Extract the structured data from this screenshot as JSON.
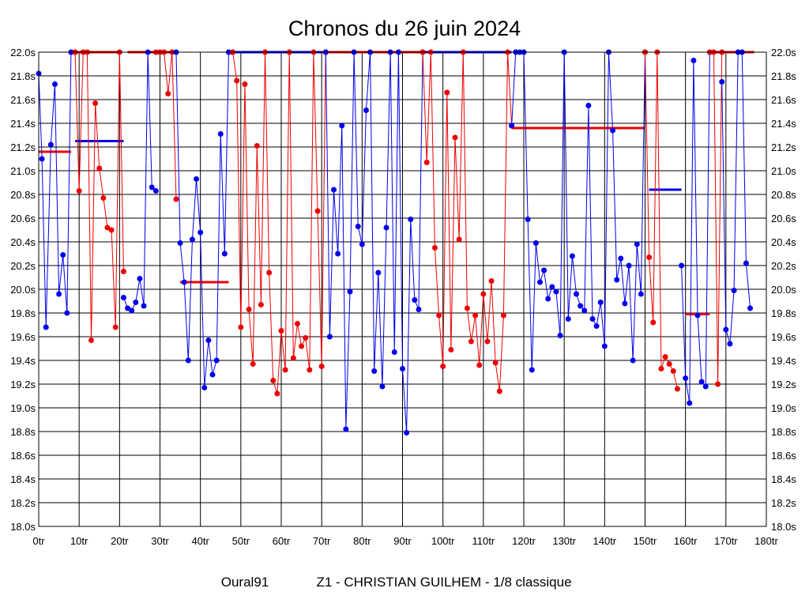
{
  "chart_data": {
    "type": "line",
    "title": "Chronos du 26 juin 2024",
    "footer": {
      "pilot": "Oural91",
      "info": "Z1 - CHRISTIAN GUILHEM - 1/8 classique"
    },
    "xlabel": "",
    "ylabel": "",
    "xlim": [
      0,
      180
    ],
    "ylim": [
      18.0,
      22.0
    ],
    "grid": true,
    "x_tick_labels": [
      "0tr",
      "10tr",
      "20tr",
      "30tr",
      "40tr",
      "50tr",
      "60tr",
      "70tr",
      "80tr",
      "90tr",
      "100tr",
      "110tr",
      "120tr",
      "130tr",
      "140tr",
      "150tr",
      "160tr",
      "170tr",
      "180tr"
    ],
    "y_tick_labels": [
      "18.0s",
      "18.2s",
      "18.4s",
      "18.6s",
      "18.8s",
      "19.0s",
      "19.2s",
      "19.4s",
      "19.6s",
      "19.8s",
      "20.0s",
      "20.2s",
      "20.4s",
      "20.6s",
      "20.8s",
      "21.0s",
      "21.2s",
      "21.4s",
      "21.6s",
      "21.8s",
      "22.0s"
    ],
    "colors": {
      "blue": "#0000ee",
      "red": "#ee0000",
      "grid": "#000000"
    },
    "series": [
      {
        "name": "blue-1",
        "color": "blue",
        "points": [
          [
            0,
            21.82
          ],
          [
            0.8,
            21.1
          ],
          [
            1.8,
            19.68
          ],
          [
            3,
            21.22
          ],
          [
            4,
            21.73
          ],
          [
            5,
            19.96
          ],
          [
            6,
            20.29
          ],
          [
            7,
            19.8
          ],
          [
            8,
            22.0
          ],
          [
            9,
            22.0
          ]
        ]
      },
      {
        "name": "red-1",
        "color": "red",
        "points": [
          [
            9,
            22.0
          ],
          [
            10,
            20.83
          ],
          [
            11,
            22.0
          ],
          [
            12,
            22.0
          ],
          [
            13,
            19.57
          ],
          [
            14,
            21.57
          ],
          [
            15,
            21.02
          ],
          [
            16,
            20.77
          ],
          [
            17,
            20.52
          ],
          [
            18,
            20.5
          ],
          [
            19,
            19.68
          ],
          [
            20,
            22.0
          ],
          [
            21,
            20.15
          ]
        ]
      },
      {
        "name": "blue-2",
        "color": "blue",
        "points": [
          [
            21,
            19.93
          ],
          [
            22,
            19.84
          ],
          [
            23,
            19.82
          ],
          [
            24,
            19.89
          ],
          [
            25,
            20.09
          ],
          [
            26,
            19.86
          ],
          [
            27,
            22.0
          ],
          [
            28,
            20.86
          ],
          [
            29,
            20.83
          ]
        ]
      },
      {
        "name": "red-2",
        "color": "red",
        "points": [
          [
            29,
            22.0
          ],
          [
            30,
            22.0
          ],
          [
            31,
            22.0
          ],
          [
            32,
            21.65
          ],
          [
            33,
            22.0
          ],
          [
            34,
            20.76
          ]
        ]
      },
      {
        "name": "blue-3",
        "color": "blue",
        "points": [
          [
            34,
            22.0
          ],
          [
            35,
            20.39
          ],
          [
            36,
            20.06
          ],
          [
            37,
            19.4
          ],
          [
            38,
            20.42
          ],
          [
            39,
            20.93
          ],
          [
            40,
            20.48
          ],
          [
            41,
            19.17
          ],
          [
            42,
            19.57
          ],
          [
            43,
            19.28
          ],
          [
            44,
            19.4
          ],
          [
            45,
            21.31
          ],
          [
            46,
            20.3
          ],
          [
            47,
            22.0
          ],
          [
            48,
            22.0
          ]
        ]
      },
      {
        "name": "red-3",
        "color": "red",
        "points": [
          [
            48,
            22.0
          ],
          [
            49,
            21.76
          ],
          [
            50,
            19.68
          ],
          [
            51,
            21.73
          ],
          [
            52,
            19.83
          ],
          [
            53,
            19.37
          ],
          [
            54,
            21.21
          ],
          [
            55,
            19.87
          ],
          [
            56,
            22.0
          ],
          [
            57,
            20.14
          ],
          [
            58,
            19.23
          ],
          [
            59,
            19.12
          ],
          [
            60,
            19.65
          ],
          [
            61,
            19.32
          ],
          [
            62,
            22.0
          ],
          [
            63,
            19.42
          ],
          [
            64,
            19.71
          ],
          [
            65,
            19.52
          ],
          [
            66,
            19.59
          ],
          [
            67,
            19.32
          ],
          [
            68,
            22.0
          ],
          [
            69,
            20.66
          ],
          [
            70,
            19.35
          ],
          [
            71,
            22.0
          ]
        ]
      },
      {
        "name": "blue-4",
        "color": "blue",
        "points": [
          [
            71,
            22.0
          ],
          [
            72,
            19.6
          ],
          [
            73,
            20.84
          ],
          [
            74,
            20.3
          ],
          [
            75,
            21.38
          ],
          [
            76,
            18.82
          ],
          [
            77,
            19.98
          ],
          [
            78,
            22.0
          ],
          [
            79,
            20.53
          ],
          [
            80,
            20.38
          ],
          [
            81,
            21.51
          ],
          [
            82,
            22.0
          ],
          [
            83,
            19.31
          ],
          [
            84,
            20.14
          ],
          [
            85,
            19.18
          ],
          [
            86,
            20.52
          ],
          [
            87,
            22.0
          ],
          [
            88,
            19.47
          ],
          [
            89,
            22.0
          ],
          [
            90,
            19.33
          ],
          [
            91,
            18.79
          ],
          [
            92,
            20.59
          ],
          [
            93,
            19.91
          ],
          [
            94,
            19.83
          ],
          [
            95,
            22.0
          ]
        ]
      },
      {
        "name": "red-4",
        "color": "red",
        "points": [
          [
            95,
            22.0
          ],
          [
            96,
            21.07
          ],
          [
            97,
            22.0
          ],
          [
            98,
            20.35
          ],
          [
            99,
            19.78
          ],
          [
            100,
            19.35
          ],
          [
            101,
            21.66
          ],
          [
            102,
            19.49
          ],
          [
            103,
            21.28
          ],
          [
            104,
            20.42
          ],
          [
            105,
            22.0
          ],
          [
            106,
            19.84
          ],
          [
            107,
            19.56
          ],
          [
            108,
            19.78
          ],
          [
            109,
            19.36
          ],
          [
            110,
            19.96
          ],
          [
            111,
            19.56
          ],
          [
            112,
            20.07
          ],
          [
            113,
            19.38
          ],
          [
            114,
            19.14
          ],
          [
            115,
            19.78
          ],
          [
            116,
            22.0
          ],
          [
            117,
            21.38
          ]
        ]
      },
      {
        "name": "blue-5",
        "color": "blue",
        "points": [
          [
            117,
            21.38
          ],
          [
            118,
            22.0
          ],
          [
            119,
            22.0
          ],
          [
            120,
            22.0
          ],
          [
            121,
            20.59
          ],
          [
            122,
            19.32
          ],
          [
            123,
            20.39
          ],
          [
            124,
            20.06
          ],
          [
            125,
            20.16
          ],
          [
            126,
            19.92
          ],
          [
            127,
            20.02
          ],
          [
            128,
            19.98
          ],
          [
            129,
            19.61
          ],
          [
            130,
            22.0
          ],
          [
            131,
            19.75
          ],
          [
            132,
            20.28
          ],
          [
            133,
            19.96
          ],
          [
            134,
            19.86
          ],
          [
            135,
            19.82
          ],
          [
            136,
            21.55
          ],
          [
            137,
            19.75
          ],
          [
            138,
            19.69
          ],
          [
            139,
            19.89
          ],
          [
            140,
            19.52
          ],
          [
            141,
            22.0
          ],
          [
            142,
            21.34
          ],
          [
            143,
            20.08
          ],
          [
            144,
            20.26
          ],
          [
            145,
            19.88
          ],
          [
            146,
            20.2
          ],
          [
            147,
            19.4
          ],
          [
            148,
            20.38
          ],
          [
            149,
            19.96
          ],
          [
            150,
            22.0
          ]
        ]
      },
      {
        "name": "red-5",
        "color": "red",
        "points": [
          [
            150,
            22.0
          ],
          [
            151,
            20.27
          ],
          [
            152,
            19.72
          ],
          [
            153,
            22.0
          ],
          [
            154,
            19.33
          ],
          [
            155,
            19.43
          ],
          [
            156,
            19.37
          ],
          [
            157,
            19.31
          ],
          [
            158,
            19.16
          ]
        ]
      },
      {
        "name": "blue-6",
        "color": "blue",
        "points": [
          [
            159,
            20.2
          ],
          [
            160,
            19.25
          ],
          [
            161,
            19.04
          ],
          [
            162,
            21.93
          ],
          [
            163,
            19.78
          ],
          [
            164,
            19.22
          ],
          [
            165,
            19.18
          ],
          [
            166,
            22.0
          ]
        ]
      },
      {
        "name": "red-6",
        "color": "red",
        "points": [
          [
            166,
            22.0
          ],
          [
            167,
            22.0
          ],
          [
            168,
            19.2
          ],
          [
            169,
            22.0
          ]
        ]
      },
      {
        "name": "blue-7",
        "color": "blue",
        "points": [
          [
            169,
            21.75
          ],
          [
            170,
            19.66
          ],
          [
            171,
            19.54
          ],
          [
            172,
            19.99
          ],
          [
            173,
            22.0
          ],
          [
            174,
            22.0
          ],
          [
            175,
            20.22
          ],
          [
            176,
            19.84
          ]
        ]
      }
    ],
    "averages": [
      {
        "color": "red",
        "x1": 0,
        "x2": 8,
        "y": 21.16
      },
      {
        "color": "blue",
        "x1": 9,
        "x2": 21,
        "y": 21.25
      },
      {
        "color": "red",
        "x1": 35,
        "x2": 47,
        "y": 20.06
      },
      {
        "color": "blue",
        "x1": 48,
        "x2": 96,
        "y": 22.0
      },
      {
        "color": "red",
        "x1": 9,
        "x2": 20,
        "y": 22.0
      },
      {
        "color": "red",
        "x1": 22,
        "x2": 34,
        "y": 22.0
      },
      {
        "color": "red",
        "x1": 70,
        "x2": 95,
        "y": 22.0
      },
      {
        "color": "blue",
        "x1": 96,
        "x2": 117,
        "y": 22.0
      },
      {
        "color": "red",
        "x1": 117,
        "x2": 150,
        "y": 21.36
      },
      {
        "color": "blue",
        "x1": 151,
        "x2": 159,
        "y": 20.84
      },
      {
        "color": "red",
        "x1": 160,
        "x2": 166,
        "y": 19.79
      },
      {
        "color": "red",
        "x1": 166,
        "x2": 177,
        "y": 22.0
      }
    ]
  }
}
